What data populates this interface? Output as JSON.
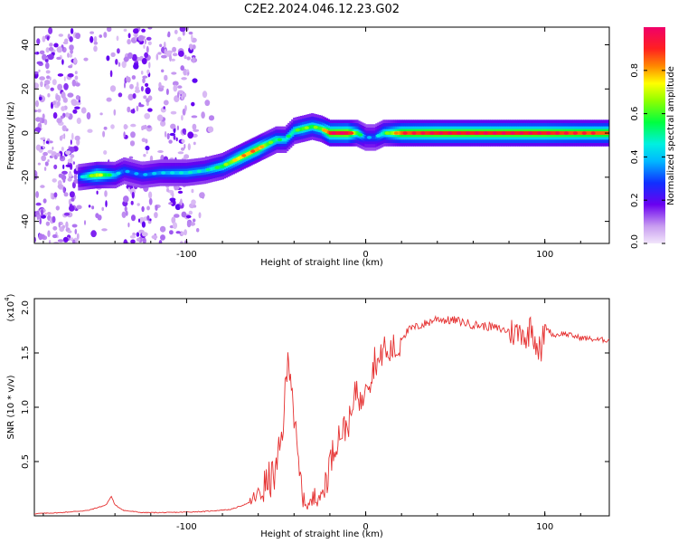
{
  "title": "C2E2.2024.046.12.23.G02",
  "chart_data": [
    {
      "type": "heatmap",
      "xlabel": "Height of straight line (km)",
      "ylabel": "Frequency (Hz)",
      "xlim": [
        -185,
        136
      ],
      "ylim": [
        -50,
        48
      ],
      "xticks": [
        -100,
        0,
        100
      ],
      "yticks": [
        -40,
        -20,
        0,
        20,
        40
      ],
      "grid": false,
      "colorbar": {
        "label": "Normalized spectral amplitude",
        "range": [
          0.0,
          1.0
        ],
        "ticks": [
          0.0,
          0.2,
          0.4,
          0.6,
          0.8
        ],
        "colormap": "rainbow (magenta-blue-cyan-green-yellow-red-crimson)"
      },
      "ridge": {
        "name": "dominant frequency track",
        "x": [
          -160,
          -150,
          -140,
          -135,
          -125,
          -115,
          -100,
          -90,
          -80,
          -70,
          -60,
          -55,
          -50,
          -45,
          -40,
          -35,
          -30,
          -25,
          -20,
          -10,
          -5,
          0,
          5,
          10,
          20,
          40,
          60,
          80,
          100,
          120,
          136
        ],
        "y": [
          -20,
          -19,
          -19,
          -17,
          -19,
          -18,
          -18,
          -17,
          -15,
          -11,
          -7,
          -5,
          -3,
          -3,
          1,
          2,
          3,
          2,
          0,
          0,
          0,
          -2,
          -2,
          0,
          0,
          0,
          0,
          0,
          0,
          0,
          0
        ],
        "amplitude": [
          0.3,
          0.7,
          0.4,
          0.3,
          0.3,
          0.35,
          0.4,
          0.4,
          0.55,
          0.75,
          0.8,
          0.6,
          0.5,
          0.45,
          0.5,
          0.6,
          0.55,
          0.6,
          0.9,
          0.95,
          0.6,
          0.3,
          0.3,
          0.5,
          0.85,
          0.9,
          0.9,
          0.9,
          0.9,
          0.85,
          0.85
        ]
      },
      "annotations": [
        "broad low-amplitude noise for x < -85 km",
        "narrow line near 0 Hz for x > 10 km"
      ]
    },
    {
      "type": "line",
      "xlabel": "Height of straight line (km)",
      "ylabel": "SNR (10 * v/v)",
      "y_multiplier": "(x10",
      "y_multiplier_exponent": "4",
      "y_multiplier_close": ")",
      "xlim": [
        -185,
        136
      ],
      "ylim": [
        0,
        2.0
      ],
      "xticks": [
        -100,
        0,
        100
      ],
      "yticks": [
        0.5,
        1.0,
        1.5,
        2.0
      ],
      "ytick_labels": [
        "0.5",
        "1.0",
        "1.5",
        "2.0"
      ],
      "grid": false,
      "color": "#e53030",
      "series": [
        {
          "x": [
            -185,
            -170,
            -155,
            -145,
            -142,
            -140,
            -135,
            -125,
            -110,
            -90,
            -75,
            -65,
            -60,
            -55,
            -50,
            -47,
            -45,
            -43,
            -41,
            -40,
            -38,
            -35,
            -32,
            -30,
            -28,
            -25,
            -22,
            -20,
            -18,
            -15,
            -12,
            -10,
            -8,
            -5,
            -2,
            0,
            3,
            5,
            8,
            10,
            12,
            15,
            18,
            20,
            25,
            30,
            35,
            40,
            45,
            50,
            60,
            70,
            80,
            85,
            88,
            90,
            92,
            95,
            98,
            100,
            105,
            110,
            120,
            130,
            136
          ],
          "y": [
            0.02,
            0.03,
            0.05,
            0.1,
            0.18,
            0.1,
            0.05,
            0.03,
            0.03,
            0.04,
            0.06,
            0.12,
            0.2,
            0.3,
            0.4,
            0.7,
            1.1,
            1.5,
            1.2,
            0.9,
            0.5,
            0.15,
            0.1,
            0.12,
            0.3,
            0.15,
            0.35,
            0.5,
            0.6,
            0.75,
            0.8,
            0.85,
            0.9,
            1.2,
            1.0,
            1.3,
            1.25,
            1.45,
            1.4,
            1.6,
            1.45,
            1.55,
            1.5,
            1.65,
            1.72,
            1.75,
            1.78,
            1.82,
            1.8,
            1.8,
            1.76,
            1.74,
            1.7,
            1.68,
            1.72,
            1.58,
            1.8,
            1.6,
            1.5,
            1.75,
            1.66,
            1.68,
            1.64,
            1.62,
            1.62
          ]
        }
      ]
    }
  ]
}
